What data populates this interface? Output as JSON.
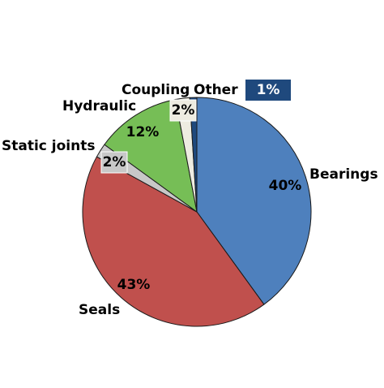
{
  "chart_data": {
    "type": "pie",
    "start_angle_deg": 0,
    "direction": "clockwise",
    "slices": [
      {
        "label": "Bearings",
        "value": 40,
        "value_label": "40%",
        "color": "#4e80bd"
      },
      {
        "label": "Seals",
        "value": 43,
        "value_label": "43%",
        "color": "#c0504d"
      },
      {
        "label": "Static joints",
        "value": 2,
        "value_label": "2%",
        "color": "#c8c8c8"
      },
      {
        "label": "Hydraulic",
        "value": 12,
        "value_label": "12%",
        "color": "#76be56"
      },
      {
        "label": "Coupling",
        "value": 2,
        "value_label": "2%",
        "color": "#eeece1"
      },
      {
        "label": "Other",
        "value": 1,
        "value_label": "1%",
        "color": "#1f497d"
      }
    ],
    "grid": false,
    "legend": "none"
  }
}
